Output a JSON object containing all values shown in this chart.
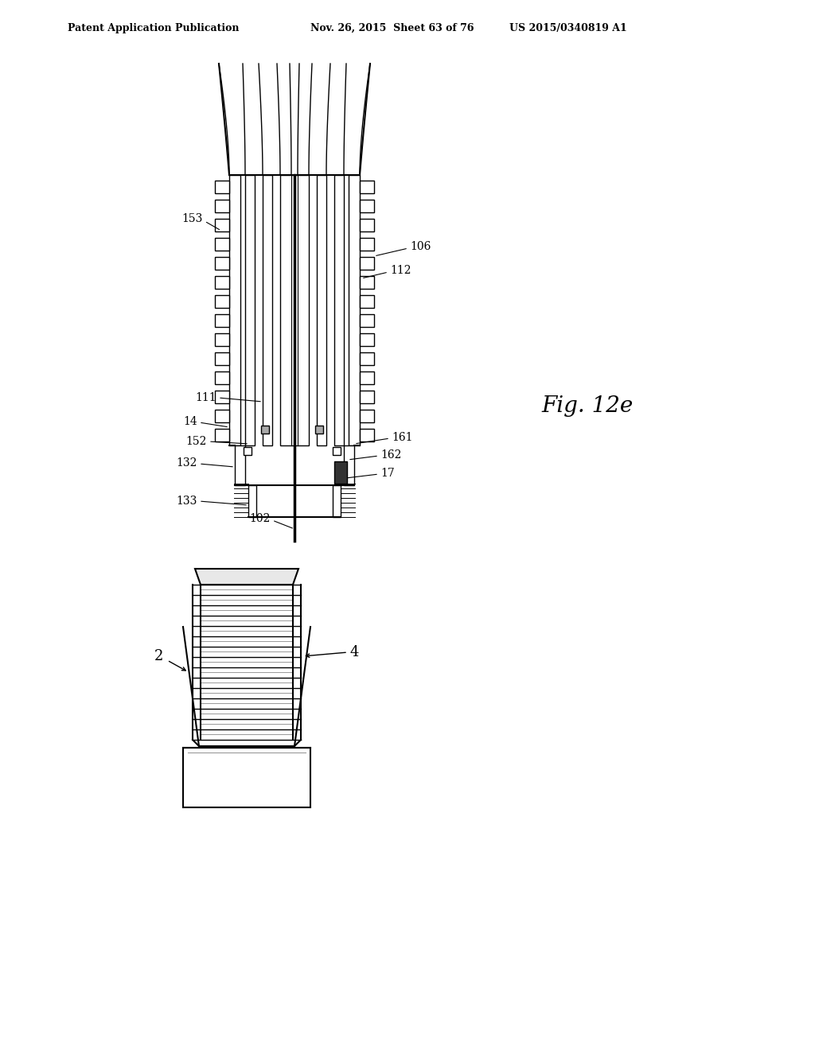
{
  "bg_color": "#ffffff",
  "title_left": "Patent Application Publication",
  "title_center": "Nov. 26, 2015  Sheet 63 of 76",
  "title_right": "US 2015/0340819 A1",
  "fig_label": "Fig. 12e",
  "line_color": "#000000"
}
